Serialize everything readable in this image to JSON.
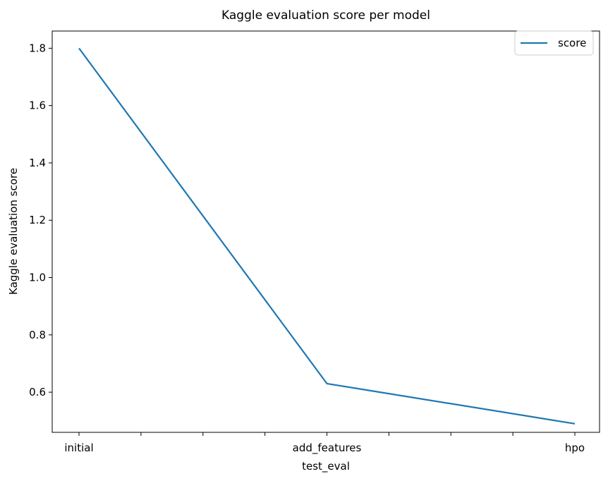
{
  "chart_data": {
    "type": "line",
    "title": "Kaggle evaluation score per model",
    "xlabel": "test_eval",
    "ylabel": "Kaggle evaluation score",
    "categories": [
      "initial",
      "add_features",
      "hpo"
    ],
    "series": [
      {
        "name": "score",
        "values": [
          1.8,
          0.63,
          0.49
        ],
        "color": "#1f77b4"
      }
    ],
    "ylim": [
      0.46,
      1.86
    ],
    "yticks": [
      0.6,
      0.8,
      1.0,
      1.2,
      1.4,
      1.6,
      1.8
    ],
    "ytick_labels": [
      "0.6",
      "0.8",
      "1.0",
      "1.2",
      "1.4",
      "1.6",
      "1.8"
    ],
    "grid": false,
    "legend_position": "top-right"
  }
}
